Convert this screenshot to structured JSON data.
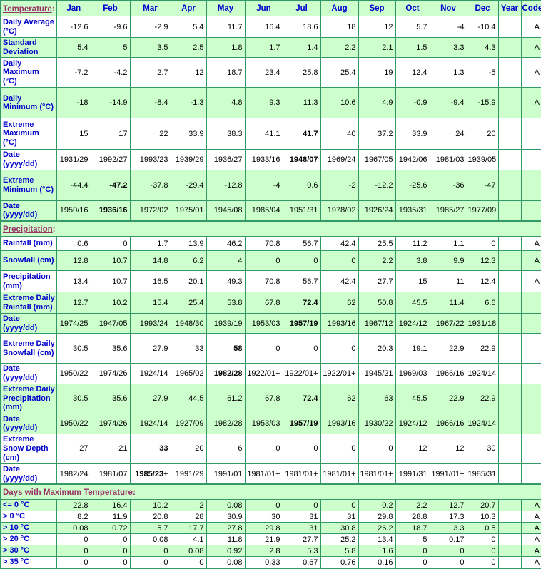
{
  "colors": {
    "row_tint_green": "#ccffcc",
    "row_plain_white": "#ffffff",
    "border_green": "#339966",
    "label_blue": "#0000cc",
    "section_title_maroon": "#993366",
    "value_text": "#000000"
  },
  "table": {
    "title_suffix": ":",
    "columns": [
      "Jan",
      "Feb",
      "Mar",
      "Apr",
      "May",
      "Jun",
      "Jul",
      "Aug",
      "Sep",
      "Oct",
      "Nov",
      "Dec",
      "Year",
      "Code"
    ],
    "sections": [
      {
        "title": "Temperature",
        "rows": [
          {
            "label": "Daily Average (°C)",
            "values": [
              "-12.6",
              "-9.6",
              "-2.9",
              "5.4",
              "11.7",
              "16.4",
              "18.6",
              "18",
              "12",
              "5.7",
              "-4",
              "-10.4"
            ],
            "year": "",
            "code": "A",
            "bold": [],
            "tint": false
          },
          {
            "label": "Standard Deviation",
            "values": [
              "5.4",
              "5",
              "3.5",
              "2.5",
              "1.8",
              "1.7",
              "1.4",
              "2.2",
              "2.1",
              "1.5",
              "3.3",
              "4.3"
            ],
            "year": "",
            "code": "A",
            "bold": [],
            "tint": true
          },
          {
            "label": "Daily Maximum (°C)",
            "values": [
              "-7.2",
              "-4.2",
              "2.7",
              "12",
              "18.7",
              "23.4",
              "25.8",
              "25.4",
              "19",
              "12.4",
              "1.3",
              "-5"
            ],
            "year": "",
            "code": "A",
            "bold": [],
            "tint": false
          },
          {
            "label": "Daily Minimum (°C)",
            "values": [
              "-18",
              "-14.9",
              "-8.4",
              "-1.3",
              "4.8",
              "9.3",
              "11.3",
              "10.6",
              "4.9",
              "-0.9",
              "-9.4",
              "-15.9"
            ],
            "year": "",
            "code": "A",
            "bold": [],
            "tint": true
          },
          {
            "label": "Extreme Maximum (°C)",
            "values": [
              "15",
              "17",
              "22",
              "33.9",
              "38.3",
              "41.1",
              "41.7",
              "40",
              "37.2",
              "33.9",
              "24",
              "20"
            ],
            "year": "",
            "code": "",
            "bold": [
              6
            ],
            "tint": false
          },
          {
            "label": "Date (yyyy/dd)",
            "values": [
              "1931/29",
              "1992/27",
              "1993/23",
              "1939/29",
              "1936/27",
              "1933/16",
              "1948/07",
              "1969/24",
              "1967/05",
              "1942/06",
              "1981/03",
              "1939/05"
            ],
            "year": "",
            "code": "",
            "bold": [
              6
            ],
            "tint": false
          },
          {
            "label": "Extreme Minimum (°C)",
            "values": [
              "-44.4",
              "-47.2",
              "-37.8",
              "-29.4",
              "-12.8",
              "-4",
              "0.6",
              "-2",
              "-12.2",
              "-25.6",
              "-36",
              "-47"
            ],
            "year": "",
            "code": "",
            "bold": [
              1
            ],
            "tint": true
          },
          {
            "label": "Date (yyyy/dd)",
            "values": [
              "1950/16",
              "1936/16",
              "1972/02",
              "1975/01",
              "1945/08",
              "1985/04",
              "1951/31",
              "1978/02",
              "1926/24",
              "1935/31",
              "1985/27",
              "1977/09"
            ],
            "year": "",
            "code": "",
            "bold": [
              1
            ],
            "tint": true
          }
        ]
      },
      {
        "title": "Precipitation",
        "rows": [
          {
            "label": "Rainfall (mm)",
            "values": [
              "0.6",
              "0",
              "1.7",
              "13.9",
              "46.2",
              "70.8",
              "56.7",
              "42.4",
              "25.5",
              "11.2",
              "1.1",
              "0"
            ],
            "year": "",
            "code": "A",
            "bold": [],
            "tint": false
          },
          {
            "label": "Snowfall (cm)",
            "values": [
              "12.8",
              "10.7",
              "14.8",
              "6.2",
              "4",
              "0",
              "0",
              "0",
              "2.2",
              "3.8",
              "9.9",
              "12.3"
            ],
            "year": "",
            "code": "A",
            "bold": [],
            "tint": true
          },
          {
            "label": "Precipitation (mm)",
            "values": [
              "13.4",
              "10.7",
              "16.5",
              "20.1",
              "49.3",
              "70.8",
              "56.7",
              "42.4",
              "27.7",
              "15",
              "11",
              "12.4"
            ],
            "year": "",
            "code": "A",
            "bold": [],
            "tint": false
          },
          {
            "label": "Extreme Daily Rainfall (mm)",
            "values": [
              "12.7",
              "10.2",
              "15.4",
              "25.4",
              "53.8",
              "67.8",
              "72.4",
              "62",
              "50.8",
              "45.5",
              "11.4",
              "6.6"
            ],
            "year": "",
            "code": "",
            "bold": [
              6
            ],
            "tint": true
          },
          {
            "label": "Date (yyyy/dd)",
            "values": [
              "1974/25",
              "1947/05",
              "1993/24",
              "1948/30",
              "1939/19",
              "1953/03",
              "1957/19",
              "1993/16",
              "1967/12",
              "1924/12",
              "1967/22",
              "1931/18"
            ],
            "year": "",
            "code": "",
            "bold": [
              6
            ],
            "tint": true
          },
          {
            "label": "Extreme Daily Snowfall (cm)",
            "values": [
              "30.5",
              "35.6",
              "27.9",
              "33",
              "58",
              "0",
              "0",
              "0",
              "20.3",
              "19.1",
              "22.9",
              "22.9"
            ],
            "year": "",
            "code": "",
            "bold": [
              4
            ],
            "tint": false
          },
          {
            "label": "Date (yyyy/dd)",
            "values": [
              "1950/22",
              "1974/26",
              "1924/14",
              "1965/02",
              "1982/28",
              "1922/01+",
              "1922/01+",
              "1922/01+",
              "1945/21",
              "1969/03",
              "1966/16",
              "1924/14"
            ],
            "year": "",
            "code": "",
            "bold": [
              4
            ],
            "tint": false
          },
          {
            "label": "Extreme Daily Precipitation (mm)",
            "values": [
              "30.5",
              "35.6",
              "27.9",
              "44.5",
              "61.2",
              "67.8",
              "72.4",
              "62",
              "63",
              "45.5",
              "22.9",
              "22.9"
            ],
            "year": "",
            "code": "",
            "bold": [
              6
            ],
            "tint": true
          },
          {
            "label": "Date (yyyy/dd)",
            "values": [
              "1950/22",
              "1974/26",
              "1924/14",
              "1927/09",
              "1982/28",
              "1953/03",
              "1957/19",
              "1993/16",
              "1930/22",
              "1924/12",
              "1966/16",
              "1924/14"
            ],
            "year": "",
            "code": "",
            "bold": [
              6
            ],
            "tint": true
          },
          {
            "label": "Extreme Snow Depth (cm)",
            "values": [
              "27",
              "21",
              "33",
              "20",
              "6",
              "0",
              "0",
              "0",
              "0",
              "12",
              "12",
              "30"
            ],
            "year": "",
            "code": "",
            "bold": [
              2
            ],
            "tint": false
          },
          {
            "label": "Date (yyyy/dd)",
            "values": [
              "1982/24",
              "1981/07",
              "1985/23+",
              "1991/29",
              "1991/01",
              "1981/01+",
              "1981/01+",
              "1981/01+",
              "1981/01+",
              "1991/31",
              "1991/01+",
              "1985/31"
            ],
            "year": "",
            "code": "",
            "bold": [
              2
            ],
            "tint": false
          }
        ]
      },
      {
        "title": "Days with Maximum Temperature",
        "rows": [
          {
            "label": "<= 0 °C",
            "values": [
              "22.8",
              "16.4",
              "10.2",
              "2",
              "0.08",
              "0",
              "0",
              "0",
              "0.2",
              "2.2",
              "12.7",
              "20.7"
            ],
            "year": "",
            "code": "A",
            "bold": [],
            "tint": true
          },
          {
            "label": "> 0 °C",
            "values": [
              "8.2",
              "11.9",
              "20.8",
              "28",
              "30.9",
              "30",
              "31",
              "31",
              "29.8",
              "28.8",
              "17.3",
              "10.3"
            ],
            "year": "",
            "code": "A",
            "bold": [],
            "tint": false
          },
          {
            "label": "> 10 °C",
            "values": [
              "0.08",
              "0.72",
              "5.7",
              "17.7",
              "27.8",
              "29.8",
              "31",
              "30.8",
              "26.2",
              "18.7",
              "3.3",
              "0.5"
            ],
            "year": "",
            "code": "A",
            "bold": [],
            "tint": true
          },
          {
            "label": "> 20 °C",
            "values": [
              "0",
              "0",
              "0.08",
              "4.1",
              "11.8",
              "21.9",
              "27.7",
              "25.2",
              "13.4",
              "5",
              "0.17",
              "0"
            ],
            "year": "",
            "code": "A",
            "bold": [],
            "tint": false
          },
          {
            "label": "> 30 °C",
            "values": [
              "0",
              "0",
              "0",
              "0.08",
              "0.92",
              "2.8",
              "5.3",
              "5.8",
              "1.6",
              "0",
              "0",
              "0"
            ],
            "year": "",
            "code": "A",
            "bold": [],
            "tint": true
          },
          {
            "label": "> 35 °C",
            "values": [
              "0",
              "0",
              "0",
              "0",
              "0.08",
              "0.33",
              "0.67",
              "0.76",
              "0.16",
              "0",
              "0",
              "0"
            ],
            "year": "",
            "code": "A",
            "bold": [],
            "tint": false
          }
        ]
      }
    ]
  }
}
